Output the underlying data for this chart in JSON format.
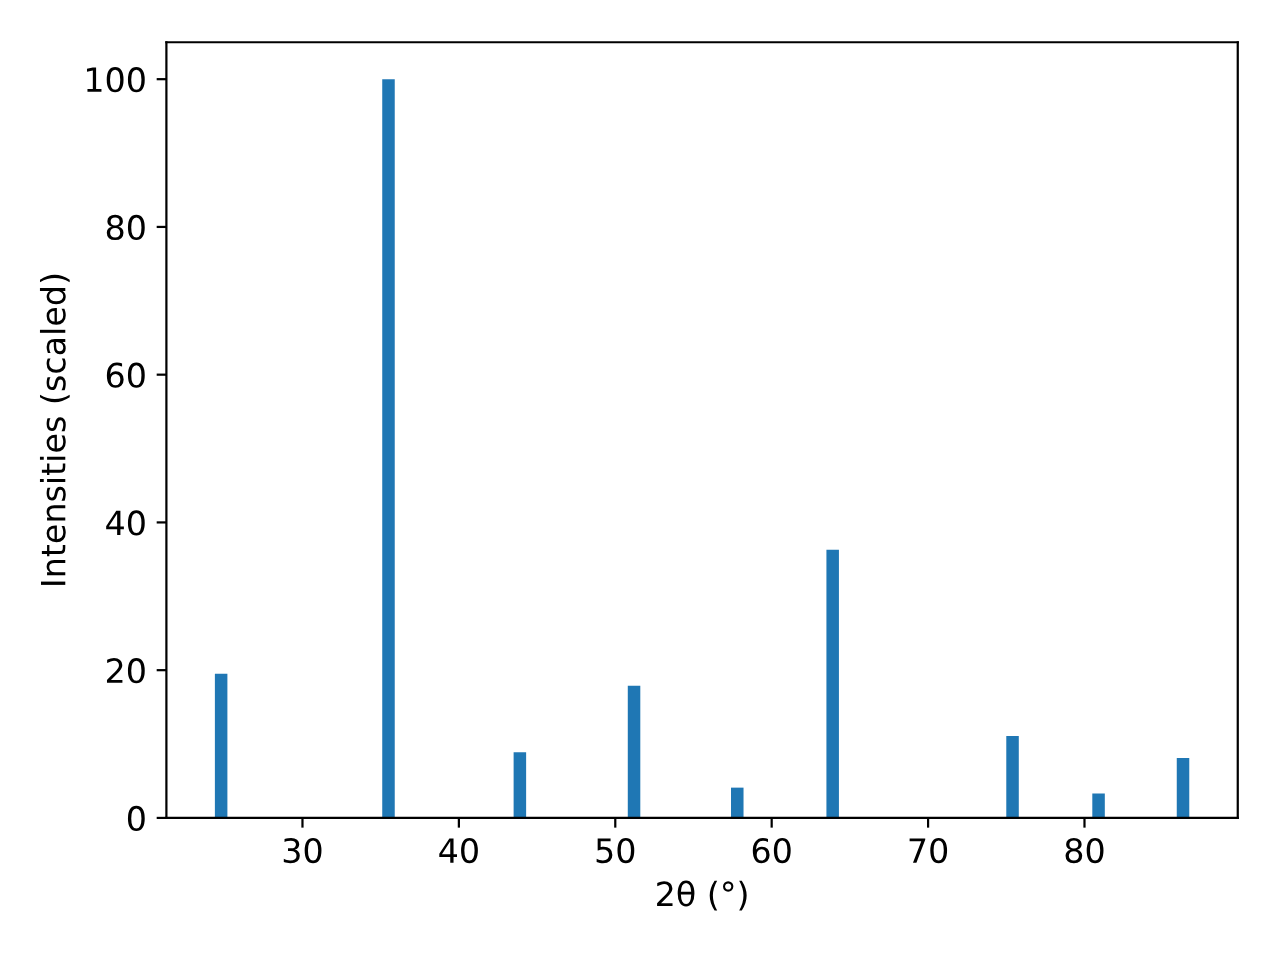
{
  "chart_data": {
    "type": "bar",
    "xlabel": "2θ (°)",
    "ylabel": "Intensities (scaled)",
    "x": [
      24.8,
      35.5,
      43.9,
      51.2,
      57.8,
      63.9,
      75.4,
      80.9,
      86.3
    ],
    "values": [
      19.5,
      100,
      8.9,
      17.9,
      4.1,
      36.3,
      11.1,
      3.3,
      8.1
    ],
    "color": "#1f77b4",
    "xlim": [
      21.3,
      89.8
    ],
    "xticks": [
      30,
      40,
      50,
      60,
      70,
      80
    ],
    "ylim": [
      0,
      105
    ],
    "yticks": [
      0,
      20,
      40,
      60,
      80,
      100
    ],
    "grid": false
  }
}
